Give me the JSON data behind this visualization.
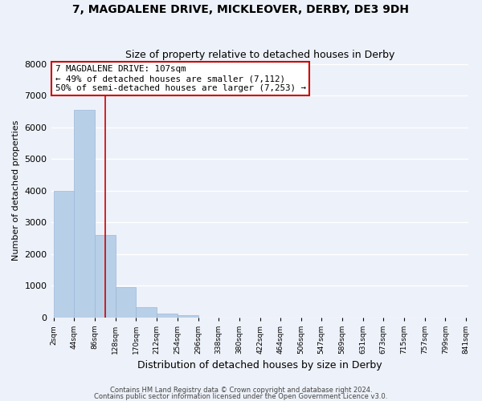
{
  "title": "7, MAGDALENE DRIVE, MICKLEOVER, DERBY, DE3 9DH",
  "subtitle": "Size of property relative to detached houses in Derby",
  "xlabel": "Distribution of detached houses by size in Derby",
  "ylabel": "Number of detached properties",
  "bar_heights": [
    4000,
    6550,
    2600,
    960,
    330,
    130,
    80,
    0,
    0,
    0,
    0,
    0,
    0,
    0,
    0,
    0,
    0,
    0,
    0,
    0
  ],
  "bin_edges": [
    2,
    44,
    86,
    128,
    170,
    212,
    254,
    296,
    338,
    380,
    422,
    464,
    506,
    547,
    589,
    631,
    673,
    715,
    757,
    799,
    841
  ],
  "bar_color": "#b8cfe8",
  "bar_edge_color": "#9ab8d8",
  "tick_labels": [
    "2sqm",
    "44sqm",
    "86sqm",
    "128sqm",
    "170sqm",
    "212sqm",
    "254sqm",
    "296sqm",
    "338sqm",
    "380sqm",
    "422sqm",
    "464sqm",
    "506sqm",
    "547sqm",
    "589sqm",
    "631sqm",
    "673sqm",
    "715sqm",
    "757sqm",
    "799sqm",
    "841sqm"
  ],
  "ylim": [
    0,
    8000
  ],
  "yticks": [
    0,
    1000,
    2000,
    3000,
    4000,
    5000,
    6000,
    7000,
    8000
  ],
  "red_line_x": 107,
  "annotation_line1": "7 MAGDALENE DRIVE: 107sqm",
  "annotation_line2": "← 49% of detached houses are smaller (7,112)",
  "annotation_line3": "50% of semi-detached houses are larger (7,253) →",
  "annotation_box_facecolor": "#ffffff",
  "annotation_box_edgecolor": "#cc0000",
  "footer1": "Contains HM Land Registry data © Crown copyright and database right 2024.",
  "footer2": "Contains public sector information licensed under the Open Government Licence v3.0.",
  "fig_facecolor": "#edf1f9",
  "ax_facecolor": "#edf1f9",
  "grid_color": "#ffffff"
}
